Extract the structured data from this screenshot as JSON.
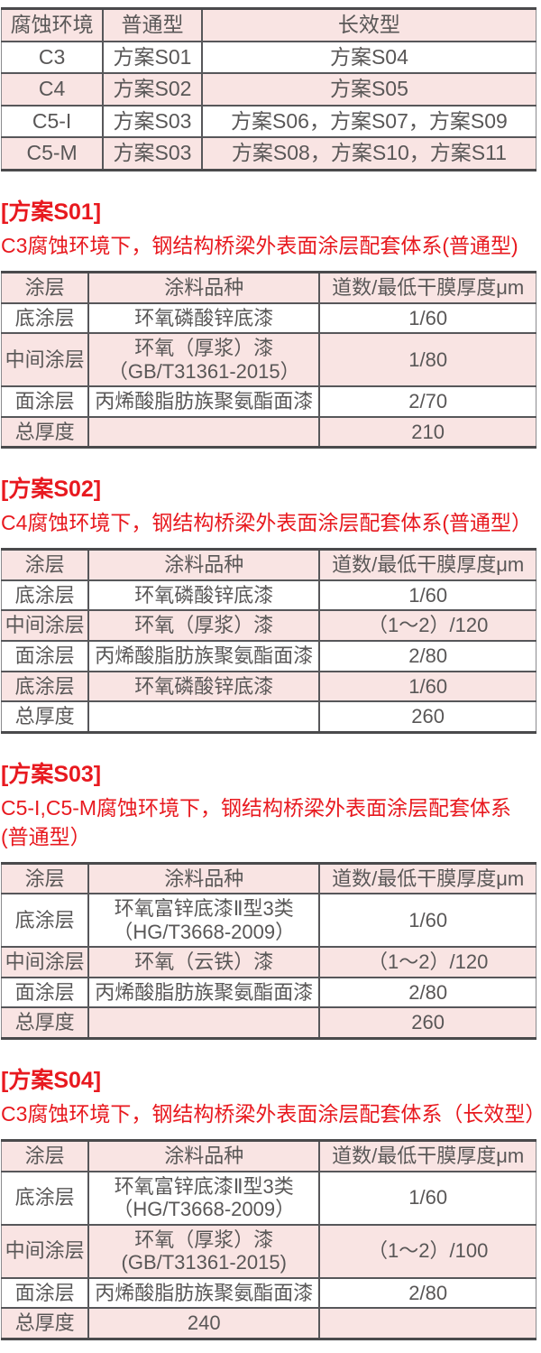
{
  "colors": {
    "pink_row": "#f9e4e3",
    "border_gray": "#57575a",
    "text_gray": "#595757",
    "title_red": "#e8191f"
  },
  "matrix": {
    "table": {
      "columns": [
        "腐蚀环境",
        "普通型",
        "长效型"
      ],
      "rows": [
        [
          "C3",
          "方案S01",
          "方案S04"
        ],
        [
          "C4",
          "方案S02",
          "方案S05"
        ],
        [
          "C5-I",
          "方案S03",
          "方案S06，方案S07，方案S09"
        ],
        [
          "C5-M",
          "方案S03",
          "方案S08，方案S10，方案S11"
        ]
      ]
    }
  },
  "sections": [
    {
      "title": "[方案S01]",
      "subtitle": "C3腐蚀环境下，钢结构桥梁外表面涂层配套体系(普通型)",
      "table": {
        "columns": [
          "涂层",
          "涂料品种",
          "道数/最低干膜厚度μm"
        ],
        "rows": [
          [
            "底涂层",
            "环氧磷酸锌底漆",
            "1/60"
          ],
          [
            "中间涂层",
            "环氧（厚浆）漆\n（GB/T31361-2015）",
            "1/80"
          ],
          [
            "面涂层",
            "丙烯酸脂肪族聚氨酯面漆",
            "2/70"
          ],
          [
            "总厚度",
            "",
            "210"
          ]
        ]
      }
    },
    {
      "title": "[方案S02]",
      "subtitle": "C4腐蚀环境下，钢结构桥梁外表面涂层配套体系(普通型）",
      "table": {
        "columns": [
          "涂层",
          "涂料品种",
          "道数/最低干膜厚度μm"
        ],
        "rows": [
          [
            "底涂层",
            "环氧磷酸锌底漆",
            "1/60"
          ],
          [
            "中间涂层",
            "环氧（厚浆）漆",
            "（1～2）/120"
          ],
          [
            "面涂层",
            "丙烯酸脂肪族聚氨酯面漆",
            "2/80"
          ],
          [
            "底涂层",
            "环氧磷酸锌底漆",
            "1/60"
          ],
          [
            "总厚度",
            "",
            "260"
          ]
        ]
      }
    },
    {
      "title": "[方案S03]",
      "subtitle": "C5-I,C5-M腐蚀环境下，钢结构桥梁外表面涂层配套体系\n(普通型）",
      "table": {
        "columns": [
          "涂层",
          "涂料品种",
          "道数/最低干膜厚度μm"
        ],
        "rows": [
          [
            "底涂层",
            "环氧富锌底漆Ⅱ型3类\n（HG/T3668-2009）",
            "1/60"
          ],
          [
            "中间涂层",
            "环氧（云铁）漆",
            "（1～2）/120"
          ],
          [
            "面涂层",
            "丙烯酸脂肪族聚氨酯面漆",
            "2/80"
          ],
          [
            "总厚度",
            "",
            "260"
          ]
        ]
      }
    },
    {
      "title": "[方案S04]",
      "subtitle": "C3腐蚀环境下，钢结构桥梁外表面涂层配套体系（长效型）",
      "table": {
        "columns": [
          "涂层",
          "涂料品种",
          "道数/最低干膜厚度μm"
        ],
        "rows": [
          [
            "底涂层",
            "环氧富锌底漆Ⅱ型3类\n（HG/T3668-2009）",
            "1/60"
          ],
          [
            "中间涂层",
            "环氧（厚浆）漆\n(GB/T31361-2015)",
            "（1～2）/100"
          ],
          [
            "面涂层",
            "丙烯酸脂肪族聚氨酯面漆",
            "2/80"
          ],
          [
            "总厚度",
            "240",
            ""
          ]
        ]
      }
    }
  ]
}
